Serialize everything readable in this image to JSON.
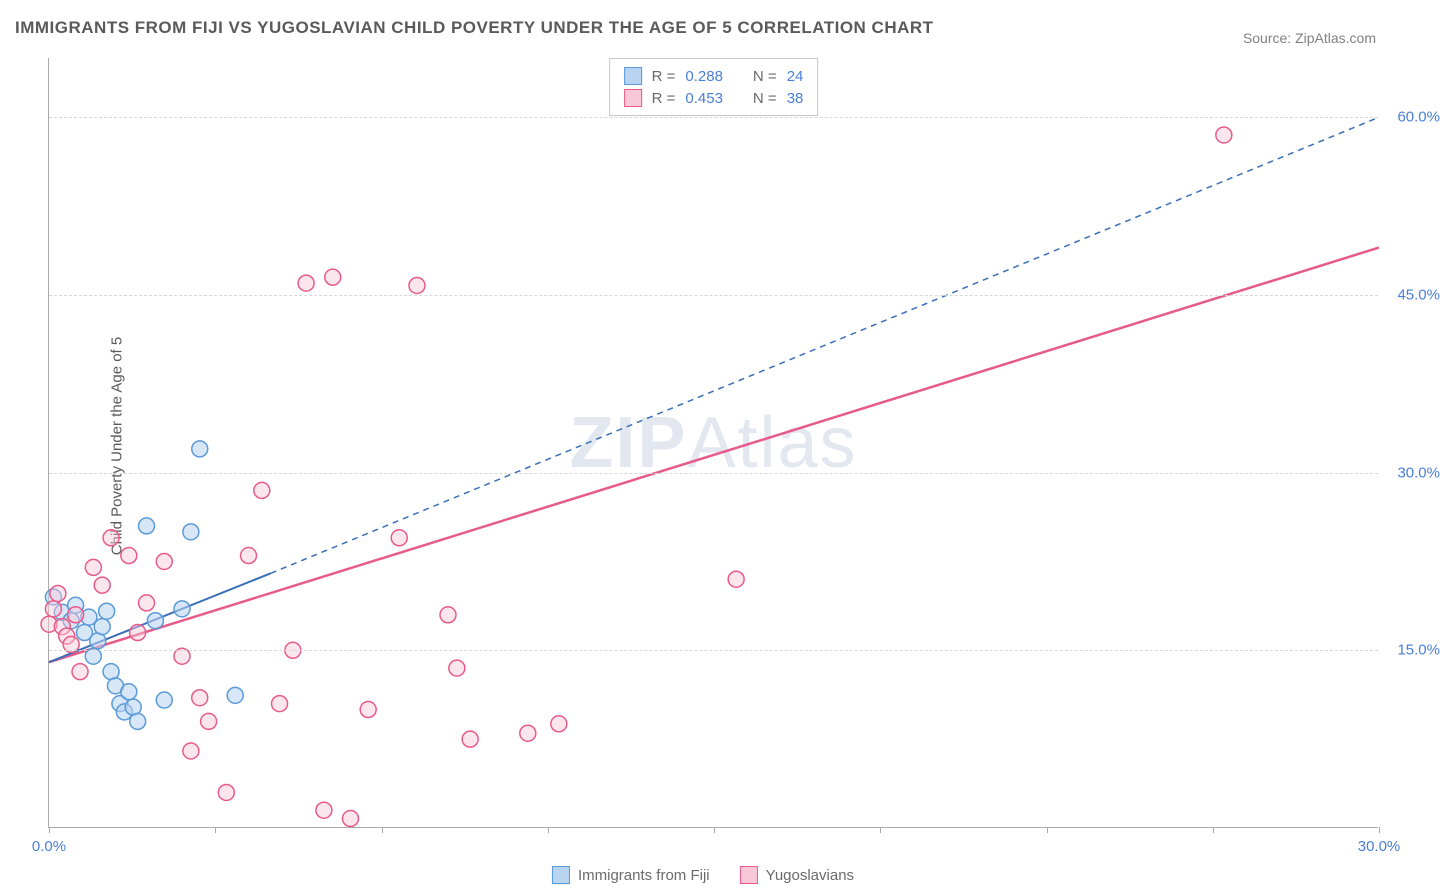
{
  "title": "IMMIGRANTS FROM FIJI VS YUGOSLAVIAN CHILD POVERTY UNDER THE AGE OF 5 CORRELATION CHART",
  "source": "Source: ZipAtlas.com",
  "watermark_bold": "ZIP",
  "watermark_rest": "Atlas",
  "y_axis_label": "Child Poverty Under the Age of 5",
  "chart": {
    "type": "scatter",
    "xlim": [
      0,
      30
    ],
    "ylim": [
      0,
      65
    ],
    "x_ticks": [
      0,
      3.75,
      7.5,
      11.25,
      15,
      18.75,
      22.5,
      26.25,
      30
    ],
    "x_tick_labels": {
      "0": "0.0%",
      "30": "30.0%"
    },
    "y_gridlines": [
      15,
      30,
      45,
      60
    ],
    "y_tick_labels": {
      "15": "15.0%",
      "30": "30.0%",
      "45": "45.0%",
      "60": "60.0%"
    },
    "background_color": "#ffffff",
    "grid_color": "#d8d8d8",
    "marker_radius": 8,
    "marker_stroke_width": 1.5,
    "series": [
      {
        "name": "Immigrants from Fiji",
        "fill": "#b8d4f0",
        "stroke": "#5a9ad8",
        "fill_opacity": 0.55,
        "R": "0.288",
        "N": "24",
        "trend": {
          "solid": [
            [
              0,
              14
            ],
            [
              5,
              21.5
            ]
          ],
          "dashed": [
            [
              5,
              21.5
            ],
            [
              30,
              60
            ]
          ],
          "color": "#3a6fb8",
          "width": 2
        },
        "points": [
          [
            0.1,
            19.5
          ],
          [
            0.3,
            18.2
          ],
          [
            0.5,
            17.5
          ],
          [
            0.6,
            18.8
          ],
          [
            0.8,
            16.5
          ],
          [
            0.9,
            17.8
          ],
          [
            1.0,
            14.5
          ],
          [
            1.1,
            15.8
          ],
          [
            1.2,
            17.0
          ],
          [
            1.3,
            18.3
          ],
          [
            1.4,
            13.2
          ],
          [
            1.5,
            12.0
          ],
          [
            1.6,
            10.5
          ],
          [
            1.7,
            9.8
          ],
          [
            1.8,
            11.5
          ],
          [
            1.9,
            10.2
          ],
          [
            2.0,
            9.0
          ],
          [
            2.2,
            25.5
          ],
          [
            2.4,
            17.5
          ],
          [
            2.6,
            10.8
          ],
          [
            3.0,
            18.5
          ],
          [
            3.2,
            25.0
          ],
          [
            3.4,
            32.0
          ],
          [
            4.2,
            11.2
          ]
        ]
      },
      {
        "name": "Yugoslavians",
        "fill": "#f8c8d8",
        "stroke": "#e85a8a",
        "fill_opacity": 0.45,
        "R": "0.453",
        "N": "38",
        "trend": {
          "solid": [
            [
              0,
              14
            ],
            [
              30,
              49
            ]
          ],
          "dashed": null,
          "color": "#e85a8a",
          "width": 2.5
        },
        "points": [
          [
            0.0,
            17.2
          ],
          [
            0.1,
            18.5
          ],
          [
            0.2,
            19.8
          ],
          [
            0.3,
            17.0
          ],
          [
            0.4,
            16.2
          ],
          [
            0.5,
            15.5
          ],
          [
            0.6,
            18.0
          ],
          [
            0.7,
            13.2
          ],
          [
            1.0,
            22.0
          ],
          [
            1.2,
            20.5
          ],
          [
            1.4,
            24.5
          ],
          [
            1.8,
            23.0
          ],
          [
            2.0,
            16.5
          ],
          [
            2.2,
            19.0
          ],
          [
            2.6,
            22.5
          ],
          [
            3.0,
            14.5
          ],
          [
            3.2,
            6.5
          ],
          [
            3.4,
            11.0
          ],
          [
            3.6,
            9.0
          ],
          [
            4.5,
            23.0
          ],
          [
            4.8,
            28.5
          ],
          [
            5.2,
            10.5
          ],
          [
            5.5,
            15.0
          ],
          [
            5.8,
            46.0
          ],
          [
            6.2,
            1.5
          ],
          [
            6.4,
            46.5
          ],
          [
            6.8,
            0.8
          ],
          [
            7.2,
            10.0
          ],
          [
            7.9,
            24.5
          ],
          [
            8.3,
            45.8
          ],
          [
            9.0,
            18.0
          ],
          [
            9.2,
            13.5
          ],
          [
            9.5,
            7.5
          ],
          [
            10.8,
            8.0
          ],
          [
            11.5,
            8.8
          ],
          [
            15.5,
            21.0
          ],
          [
            26.5,
            58.5
          ],
          [
            4.0,
            3.0
          ]
        ]
      }
    ]
  },
  "legend_top": {
    "r_label": "R =",
    "n_label": "N ="
  },
  "legend_bottom": [
    {
      "label": "Immigrants from Fiji",
      "fill": "#b8d4f0",
      "stroke": "#5a9ad8"
    },
    {
      "label": "Yugoslavians",
      "fill": "#f8c8d8",
      "stroke": "#e85a8a"
    }
  ]
}
